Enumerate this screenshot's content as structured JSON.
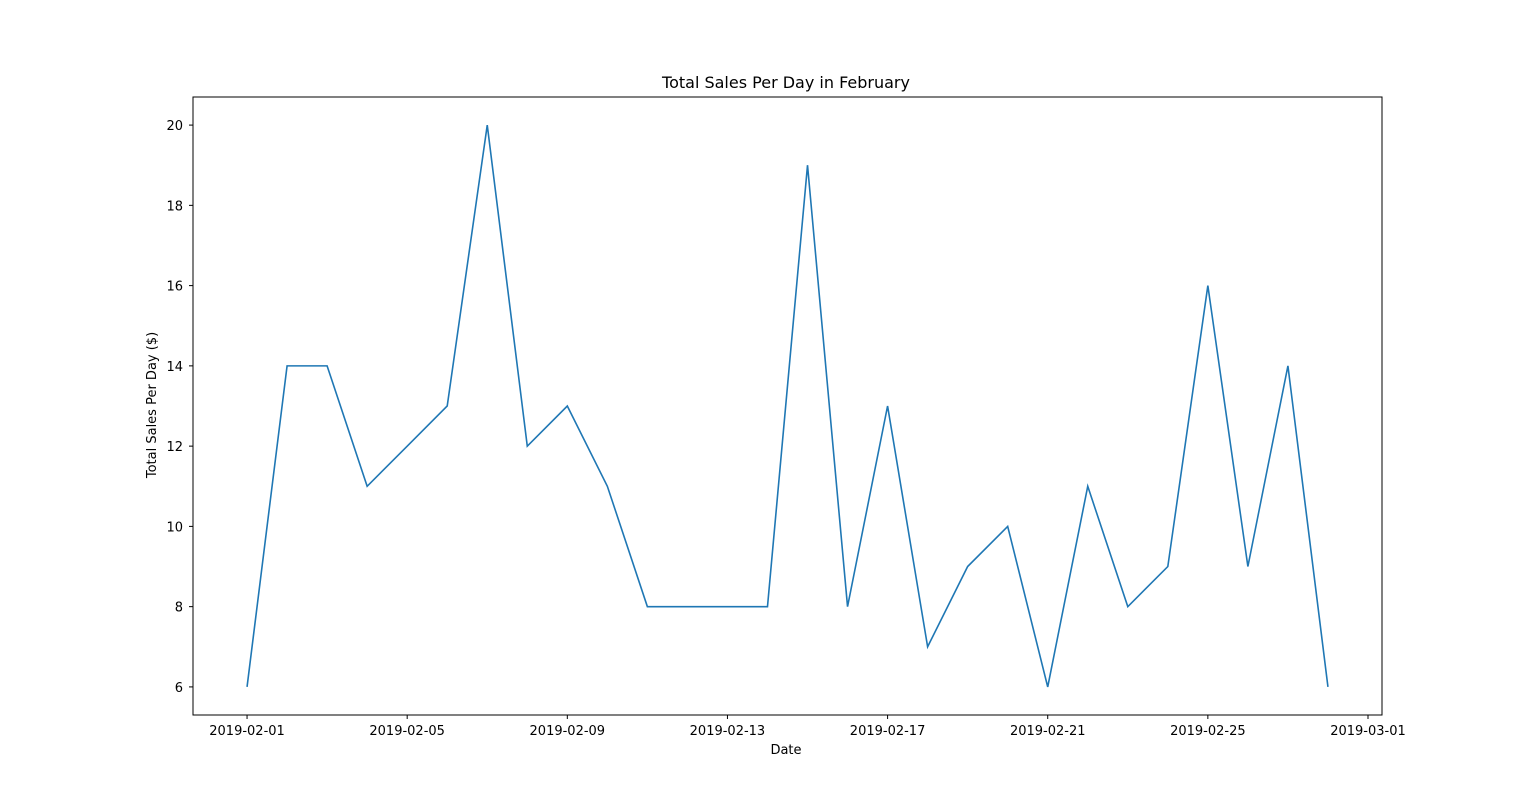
{
  "chart_data": {
    "type": "line",
    "title": "Total Sales Per Day in February",
    "xlabel": "Date",
    "ylabel": "Total Sales Per Day ($)",
    "x": [
      "2019-02-01",
      "2019-02-02",
      "2019-02-03",
      "2019-02-04",
      "2019-02-05",
      "2019-02-06",
      "2019-02-07",
      "2019-02-08",
      "2019-02-09",
      "2019-02-10",
      "2019-02-11",
      "2019-02-12",
      "2019-02-13",
      "2019-02-14",
      "2019-02-15",
      "2019-02-16",
      "2019-02-17",
      "2019-02-18",
      "2019-02-19",
      "2019-02-20",
      "2019-02-21",
      "2019-02-22",
      "2019-02-23",
      "2019-02-24",
      "2019-02-25",
      "2019-02-26",
      "2019-02-27",
      "2019-02-28"
    ],
    "series": [
      {
        "color": "#1f77b4",
        "values": [
          6,
          14,
          14,
          11,
          12,
          13,
          20,
          12,
          13,
          11,
          8,
          8,
          8,
          8,
          19,
          8,
          13,
          7,
          9,
          10,
          6,
          11,
          8,
          9,
          16,
          9,
          14,
          6
        ]
      }
    ],
    "xticks": [
      "2019-02-01",
      "2019-02-05",
      "2019-02-09",
      "2019-02-13",
      "2019-02-17",
      "2019-02-21",
      "2019-02-25",
      "2019-03-01"
    ],
    "yticks": [
      6,
      8,
      10,
      12,
      14,
      16,
      18,
      20
    ],
    "xlim": [
      "2019-01-30",
      "2019-03-01"
    ],
    "ylim": [
      5.3,
      20.7
    ],
    "grid": false,
    "legend": "none"
  }
}
